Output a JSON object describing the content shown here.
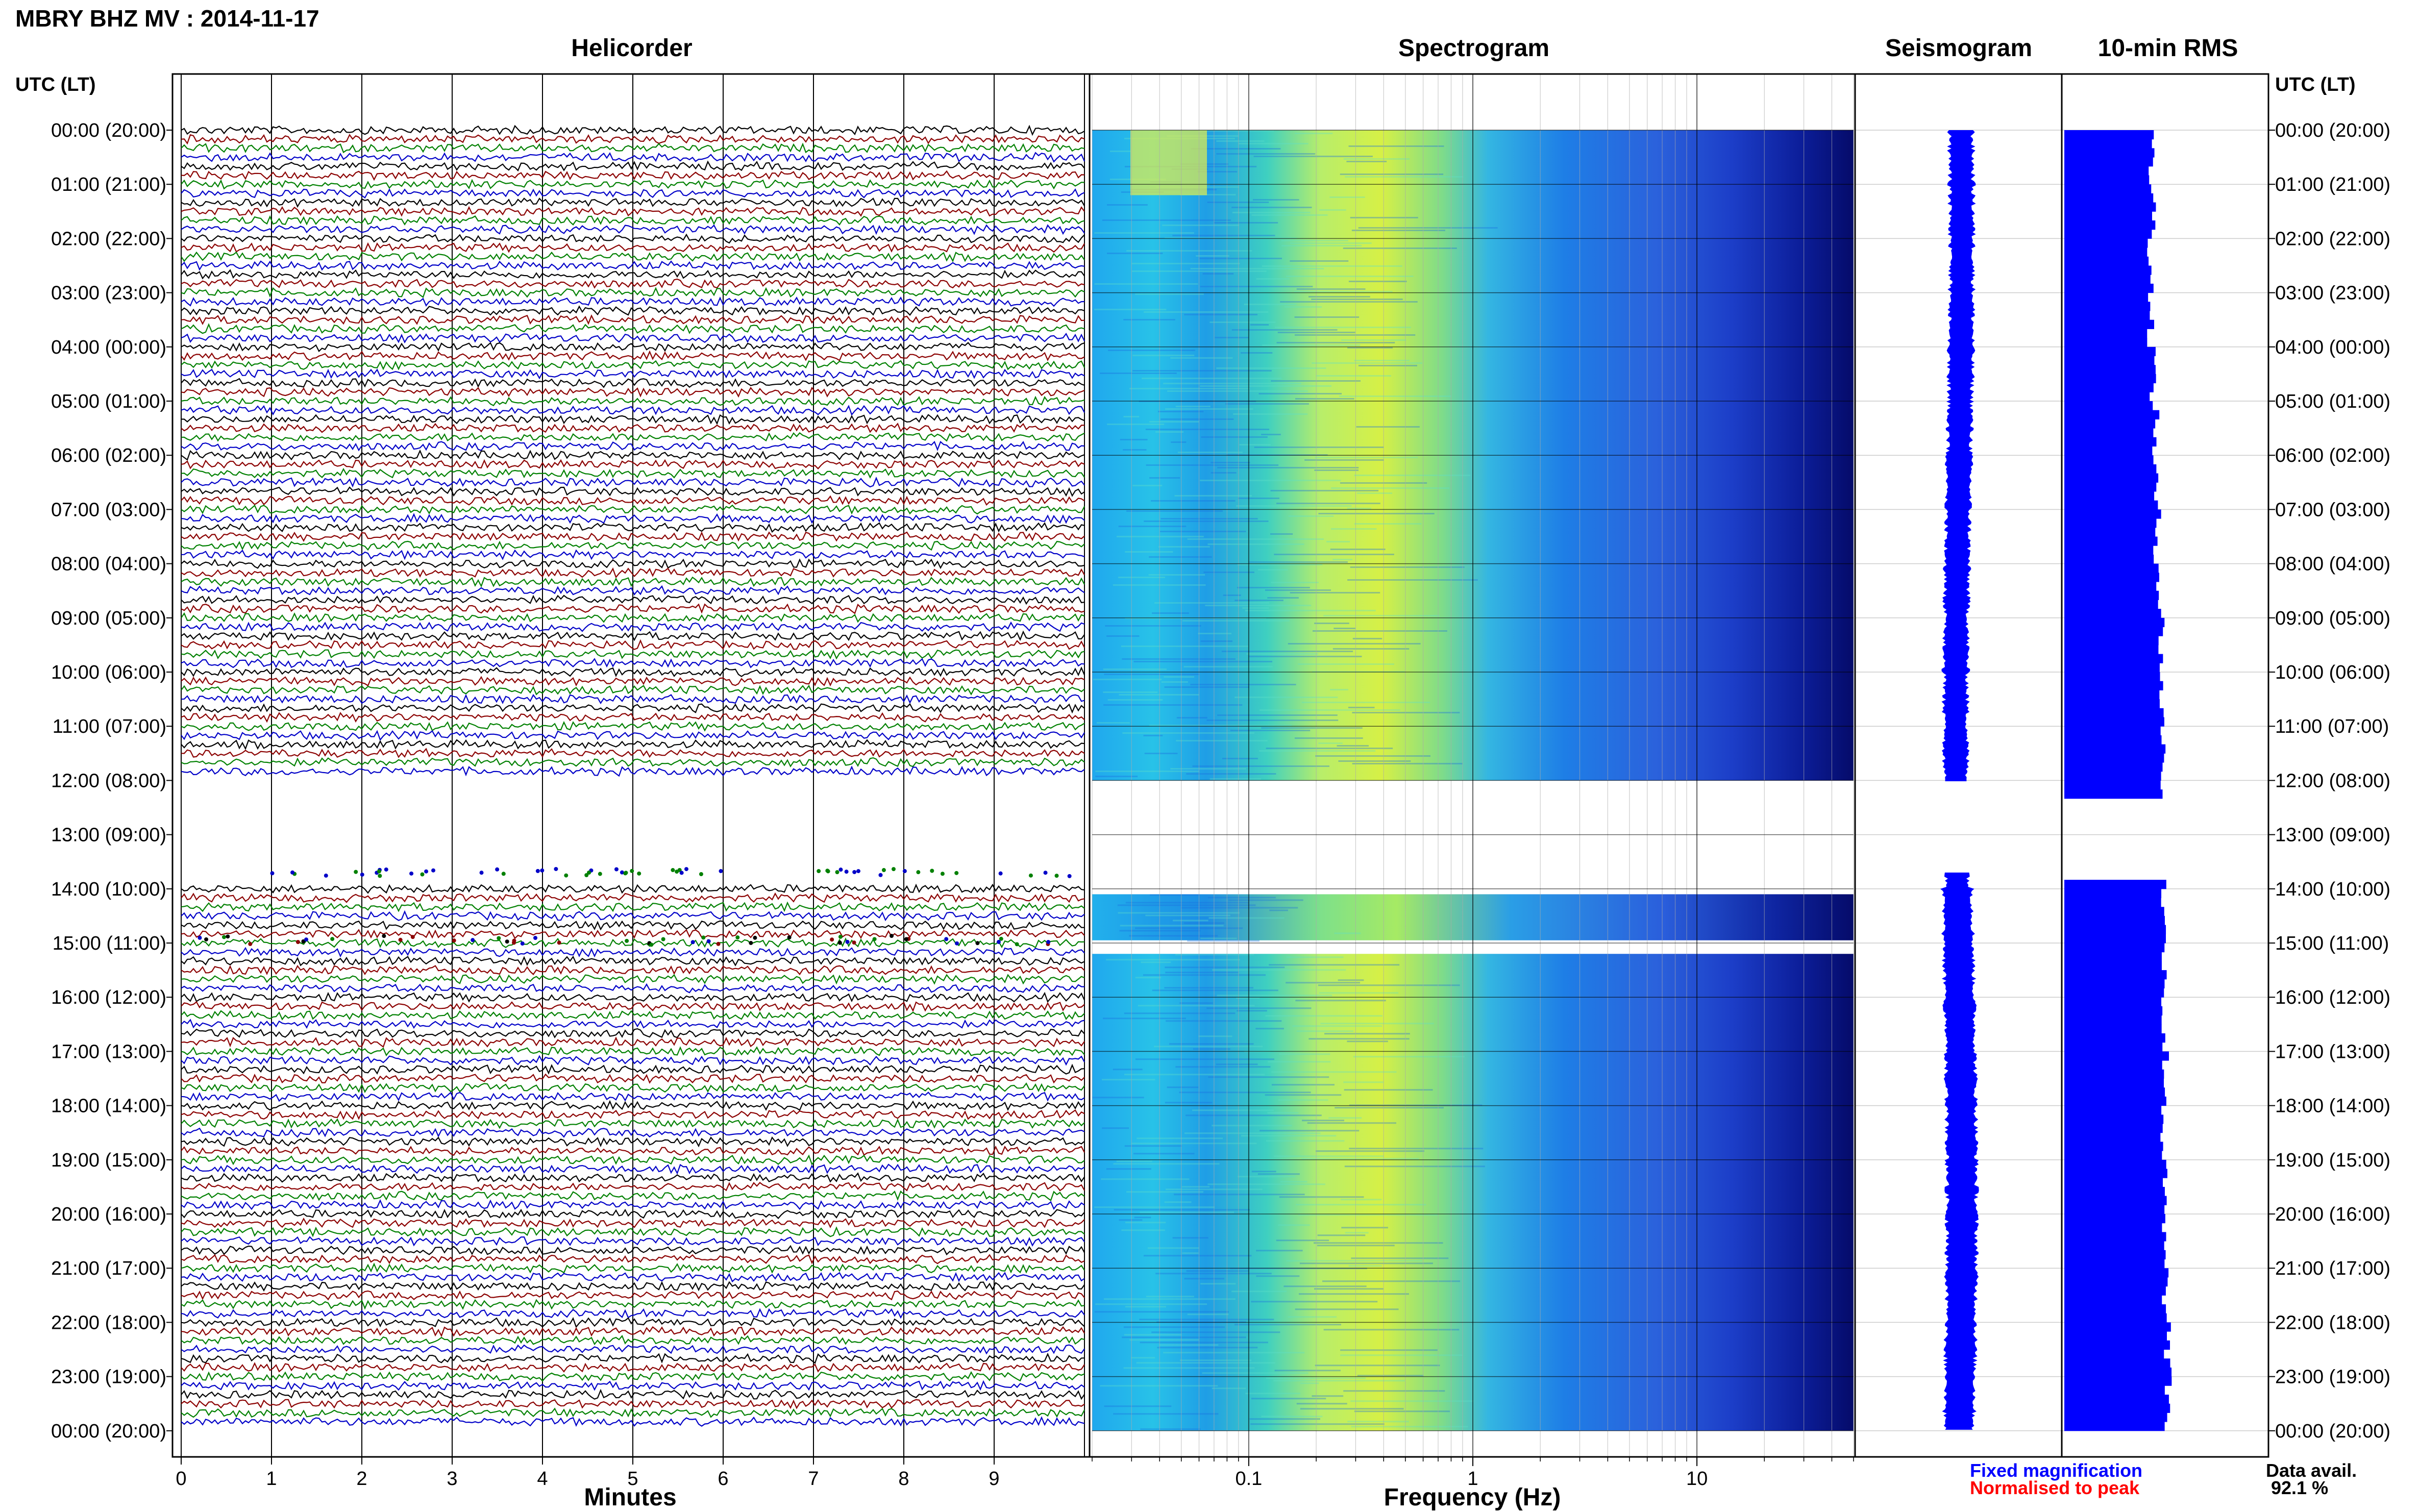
{
  "title": "MBRY BHZ MV : 2014-11-17",
  "panels": {
    "helicorder": "Helicorder",
    "spectrogram": "Spectrogram",
    "seismogram": "Seismogram",
    "rms": "10-min RMS"
  },
  "time_axis_label": "UTC (LT)",
  "time_labels": [
    "00:00 (20:00)",
    "01:00 (21:00)",
    "02:00 (22:00)",
    "03:00 (23:00)",
    "04:00 (00:00)",
    "05:00 (01:00)",
    "06:00 (02:00)",
    "07:00 (03:00)",
    "08:00 (04:00)",
    "09:00 (05:00)",
    "10:00 (06:00)",
    "11:00 (07:00)",
    "12:00 (08:00)",
    "13:00 (09:00)",
    "14:00 (10:00)",
    "15:00 (11:00)",
    "16:00 (12:00)",
    "17:00 (13:00)",
    "18:00 (14:00)",
    "19:00 (15:00)",
    "20:00 (16:00)",
    "21:00 (17:00)",
    "22:00 (18:00)",
    "23:00 (19:00)",
    "00:00 (20:00)"
  ],
  "x_axes": {
    "helicorder": {
      "label": "Minutes",
      "ticks": [
        "0",
        "1",
        "2",
        "3",
        "4",
        "5",
        "6",
        "7",
        "8",
        "9"
      ]
    },
    "spectrogram": {
      "label": "Frequency (Hz)",
      "ticks": [
        "0.1",
        "1",
        "10"
      ],
      "scale": "log"
    }
  },
  "legend": {
    "fixed": "Fixed magnification",
    "normalised": "Normalised to peak",
    "fixed_color": "#0000ff",
    "normalised_color": "#ff0000"
  },
  "data_avail": {
    "label": "Data avail.",
    "value": "92.1 %"
  },
  "colors": {
    "trace_cycle": [
      "#000000",
      "#8b0000",
      "#008000",
      "#0000c8"
    ],
    "rms_bar": "#0000ff"
  },
  "chart_data": {
    "type": "heatmap",
    "title": "MBRY BHZ MV : 2014-11-17",
    "x_minutes_range": [
      0,
      10
    ],
    "freq_range_hz": [
      0.02,
      50
    ],
    "hours": 24,
    "gap_hours": [
      12,
      14
    ],
    "rms_hourly_relative": [
      0.42,
      0.43,
      0.42,
      0.42,
      0.43,
      0.44,
      0.44,
      0.45,
      0.46,
      0.47,
      0.47,
      0.48,
      0.48,
      null,
      0.48,
      0.49,
      0.48,
      0.49,
      0.48,
      0.48,
      0.48,
      0.49,
      0.5,
      0.5,
      0.52
    ]
  }
}
